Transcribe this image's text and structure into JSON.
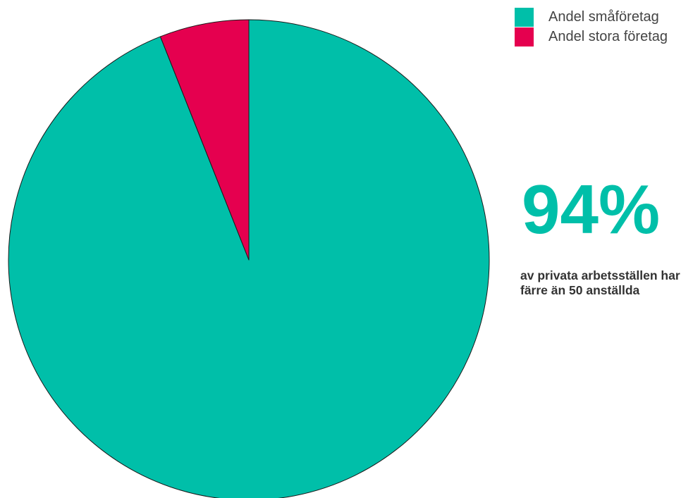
{
  "chart_data": {
    "type": "pie",
    "categories": [
      "Andel småföretag",
      "Andel stora företag"
    ],
    "values": [
      94,
      6
    ],
    "colors": [
      "#00BFA9",
      "#E5004F"
    ],
    "legend_position": "top-right",
    "start_angle": "top",
    "direction": "clockwise"
  },
  "legend": {
    "items": [
      {
        "label": "Andel småföretag",
        "color": "#00BFA9"
      },
      {
        "label": "Andel stora företag",
        "color": "#E5004F"
      }
    ]
  },
  "highlight": {
    "value": "94%",
    "color": "#00BFA9",
    "caption_line1": "av privata arbetsställen har",
    "caption_line2": "färre än 50 anställda"
  }
}
